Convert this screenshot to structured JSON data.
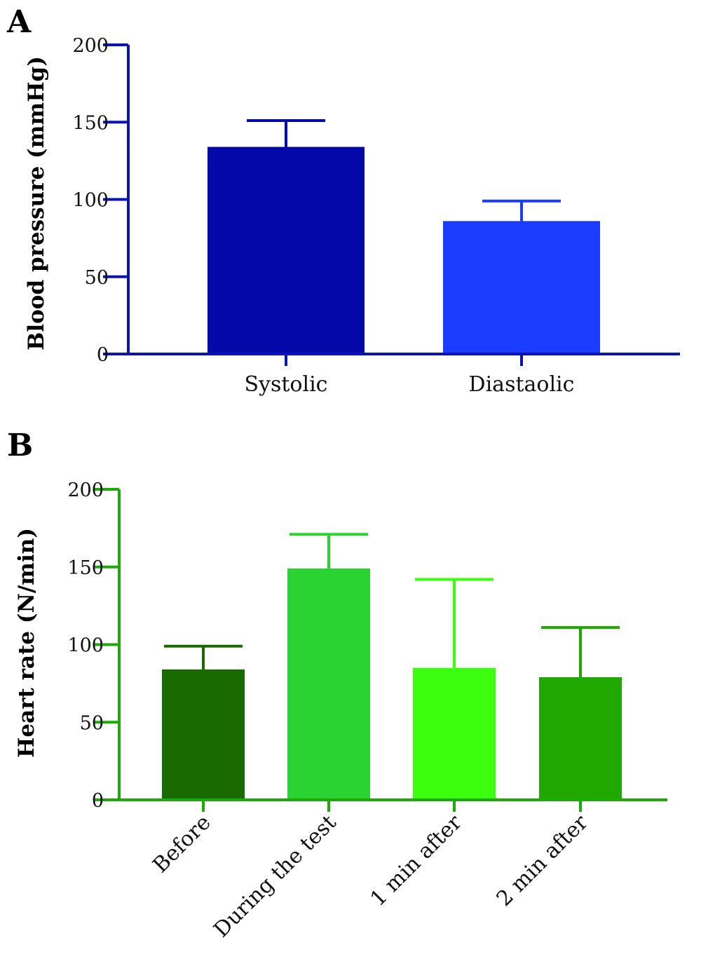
{
  "chart_data": [
    {
      "panel": "A",
      "type": "bar",
      "title": "",
      "xlabel": "",
      "ylabel": "Blood pressure (mmHg)",
      "ylim": [
        0,
        200
      ],
      "yticks": [
        "0",
        "50",
        "100",
        "150",
        "200"
      ],
      "categories": [
        "Systolic",
        "Diastaolic"
      ],
      "values": [
        134,
        86
      ],
      "error_upper": [
        151,
        99
      ],
      "axis_color": "#0a14b4",
      "bar_colors": [
        "#0508a8",
        "#1a3cff"
      ],
      "grid": false,
      "legend": "none"
    },
    {
      "panel": "B",
      "type": "bar",
      "title": "",
      "xlabel": "",
      "ylabel": "Heart rate (N/min)",
      "ylim": [
        0,
        200
      ],
      "yticks": [
        "0",
        "50",
        "100",
        "150",
        "200"
      ],
      "categories": [
        "Before",
        "During the test",
        "1 min after",
        "2 min after"
      ],
      "values": [
        84,
        149,
        85,
        79
      ],
      "error_upper": [
        99,
        171,
        142,
        111
      ],
      "axis_color": "#1fa80a",
      "bar_colors": [
        "#196a00",
        "#2ad232",
        "#3cff10",
        "#20a800"
      ],
      "grid": false,
      "legend": "none"
    }
  ]
}
